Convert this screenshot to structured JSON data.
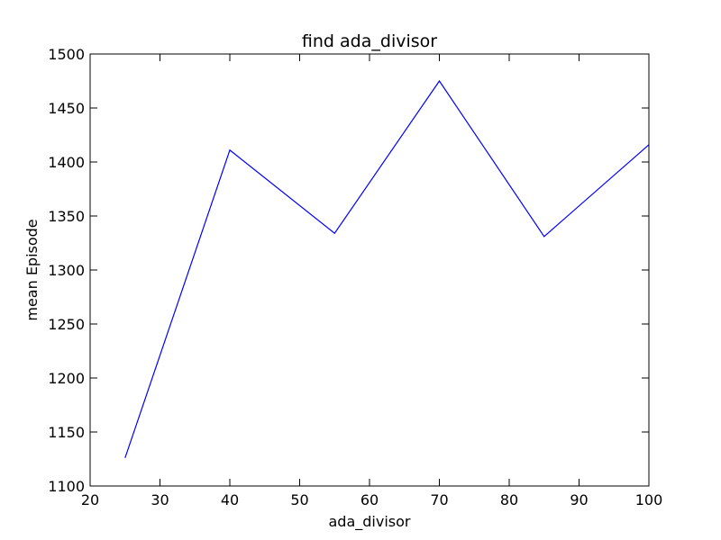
{
  "chart_data": {
    "type": "line",
    "title": "find ada_divisor",
    "xlabel": "ada_divisor",
    "ylabel": "mean Episode",
    "xlim": [
      20,
      100
    ],
    "ylim": [
      1100,
      1500
    ],
    "xticks": [
      20,
      30,
      40,
      50,
      60,
      70,
      80,
      90,
      100
    ],
    "yticks": [
      1100,
      1150,
      1200,
      1250,
      1300,
      1350,
      1400,
      1450,
      1500
    ],
    "grid": false,
    "series": [
      {
        "color": "#0000ff",
        "x": [
          25,
          40,
          55,
          70,
          85,
          100
        ],
        "y": [
          1126,
          1411,
          1334,
          1475,
          1331,
          1416
        ]
      }
    ]
  }
}
